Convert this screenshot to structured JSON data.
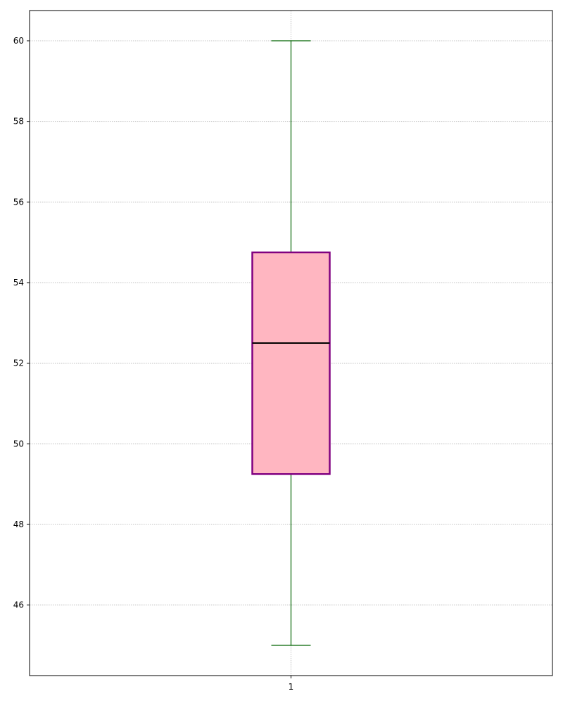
{
  "chart_data": {
    "type": "box",
    "title": "",
    "xlabel": "",
    "ylabel": "",
    "categories": [
      "1"
    ],
    "series": [
      {
        "whisker_low": 45,
        "q1": 49.25,
        "median": 52.5,
        "q3": 54.75,
        "whisker_high": 60
      }
    ],
    "yticks": [
      46,
      48,
      50,
      52,
      54,
      56,
      58,
      60
    ],
    "ylim": [
      44.25,
      60.75
    ],
    "grid": true,
    "colors": {
      "box_fill": "#ffb6c1",
      "box_edge": "#800080",
      "median": "#000000",
      "whisker": "#006400",
      "grid": "#b0b0b0"
    }
  }
}
